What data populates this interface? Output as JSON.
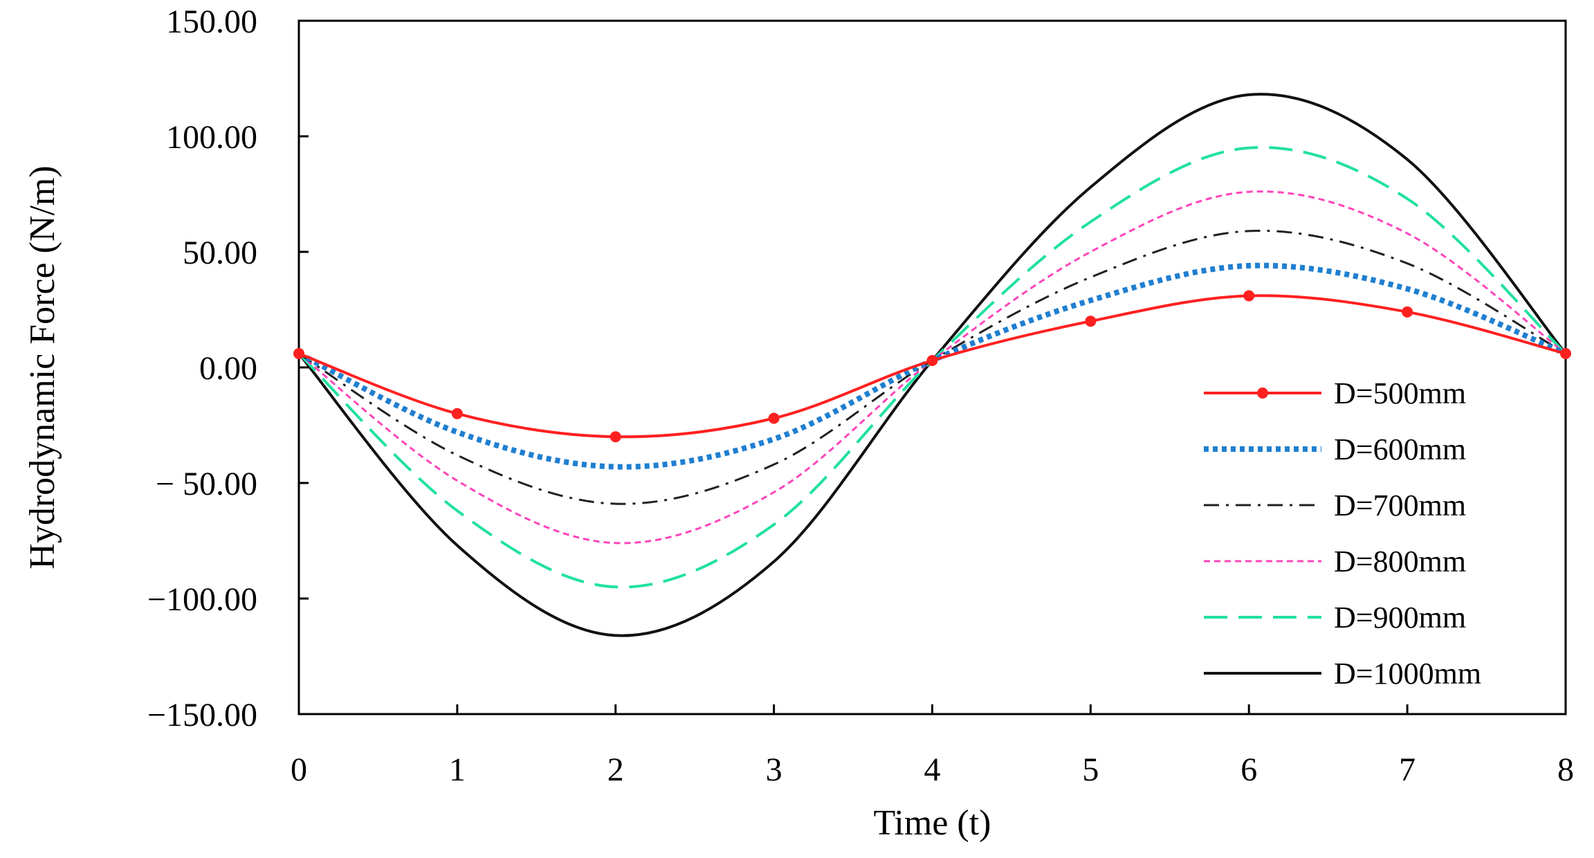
{
  "chart_data": {
    "type": "line",
    "title": "",
    "xlabel": "Time (t)",
    "ylabel": "Hydrodynamic Force (N/m)",
    "xlim": [
      0,
      8
    ],
    "ylim": [
      -150,
      150
    ],
    "x_ticks": [
      0,
      1,
      2,
      3,
      4,
      5,
      6,
      7,
      8
    ],
    "x_tick_labels": [
      "0",
      "1",
      "2",
      "3",
      "4",
      "5",
      "6",
      "7",
      "8"
    ],
    "y_ticks": [
      150,
      100,
      50,
      0,
      -50,
      -100,
      -150
    ],
    "y_tick_labels": [
      "150.00",
      "100.00",
      "50.00",
      "0.00",
      "− 50.00",
      "−100.00",
      "−150.00"
    ],
    "grid": false,
    "legend_position": "bottom-right",
    "x": [
      0,
      1,
      2,
      3,
      4,
      5,
      6,
      7,
      8
    ],
    "series": [
      {
        "name": "D=500mm",
        "color": "#ff2020",
        "style": "solid-marker",
        "values": [
          6,
          -20,
          -30,
          -22,
          3,
          20,
          31,
          24,
          6
        ]
      },
      {
        "name": "D=600mm",
        "color": "#1f7fd0",
        "style": "dotted",
        "values": [
          6,
          -28,
          -43,
          -31,
          3,
          29,
          44,
          34,
          6
        ]
      },
      {
        "name": "D=700mm",
        "color": "#202020",
        "style": "dash-dot",
        "values": [
          6,
          -38,
          -59,
          -42,
          3,
          39,
          59,
          45,
          6
        ]
      },
      {
        "name": "D=800mm",
        "color": "#ff44bb",
        "style": "short-dash",
        "values": [
          6,
          -49,
          -76,
          -54,
          3,
          50,
          76,
          58,
          6
        ]
      },
      {
        "name": "D=900mm",
        "color": "#22e0a0",
        "style": "long-dash",
        "values": [
          6,
          -62,
          -95,
          -68,
          3,
          63,
          95,
          73,
          6
        ]
      },
      {
        "name": "D=1000mm",
        "color": "#111111",
        "style": "solid",
        "values": [
          6,
          -77,
          -116,
          -84,
          3,
          78,
          118,
          90,
          6
        ]
      }
    ]
  }
}
